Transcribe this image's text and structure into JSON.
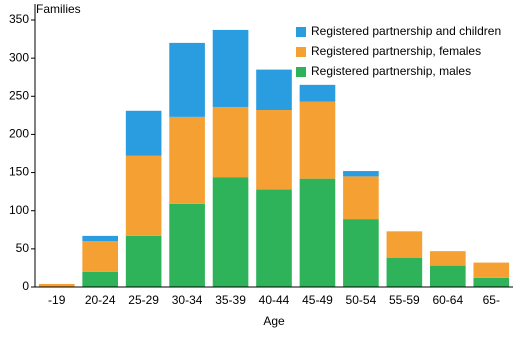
{
  "chart_data": {
    "type": "stacked_bar",
    "y_label": "Families",
    "x_label": "Age",
    "categories": [
      "-19",
      "20-24",
      "25-29",
      "30-34",
      "35-39",
      "40-44",
      "45-49",
      "50-54",
      "55-59",
      "60-64",
      "65-"
    ],
    "series": [
      {
        "name": "Registered partnership, males",
        "color": "#2eb35a",
        "values": [
          0,
          20,
          67,
          109,
          144,
          128,
          142,
          89,
          38,
          28,
          12
        ]
      },
      {
        "name": "Registered partnership, females",
        "color": "#f5a033",
        "values": [
          4,
          40,
          105,
          114,
          92,
          104,
          101,
          56,
          35,
          19,
          20
        ]
      },
      {
        "name": "Registered partnership and children",
        "color": "#2a9de0",
        "values": [
          0,
          7,
          59,
          97,
          101,
          53,
          22,
          7,
          0,
          0,
          0
        ]
      }
    ],
    "ylim": [
      0,
      350
    ],
    "yticks": [
      0,
      50,
      100,
      150,
      200,
      250,
      300,
      350
    ],
    "legend": "upper right"
  }
}
